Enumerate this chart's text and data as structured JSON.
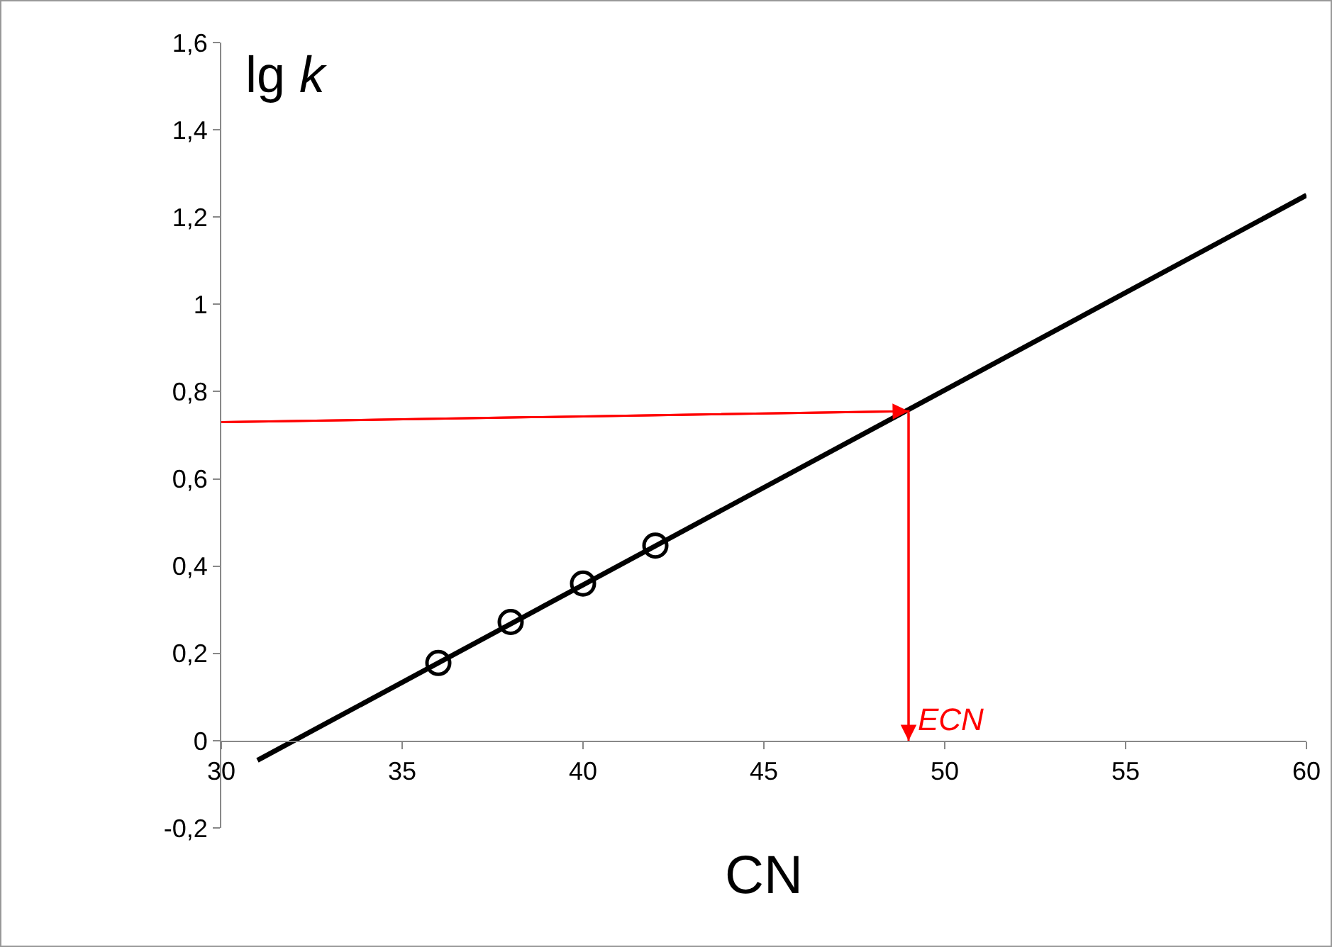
{
  "chart_data": {
    "type": "scatter",
    "xlabel": "CN",
    "ylabel": "lg k",
    "xlim": [
      30,
      60
    ],
    "xticks": [
      30,
      35,
      40,
      45,
      50,
      55,
      60
    ],
    "ylim": [
      -0.2,
      1.6
    ],
    "yticks": [
      {
        "value": -0.2,
        "label": "-0,2"
      },
      0,
      {
        "value": 0.2,
        "label": "0,2"
      },
      {
        "value": 0.4,
        "label": "0,4"
      },
      {
        "value": 0.6,
        "label": "0,6"
      },
      {
        "value": 0.8,
        "label": "0,8"
      },
      1,
      {
        "value": 1.2,
        "label": "1,2"
      },
      {
        "value": 1.4,
        "label": "1,4"
      },
      {
        "value": 1.6,
        "label": "1,6"
      }
    ],
    "grid": false,
    "legend": false,
    "series": [
      {
        "type": "line",
        "color": "#000000",
        "x": [
          31,
          60
        ],
        "values": [
          -0.045,
          1.25
        ],
        "marker": "none"
      },
      {
        "color": "#000000",
        "x": [
          36,
          38,
          40,
          42
        ],
        "values": [
          0.178,
          0.272,
          0.36,
          0.447
        ],
        "marker": "circle"
      },
      {
        "type": "line",
        "color": "#ff0000",
        "x": [
          30,
          49,
          49
        ],
        "values": [
          0.73,
          0.755,
          0
        ],
        "marker": "none"
      }
    ],
    "annotations": [
      {
        "text": "ECN",
        "x": 49,
        "y": 0
      }
    ]
  }
}
